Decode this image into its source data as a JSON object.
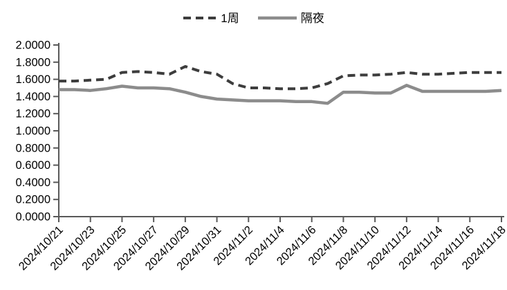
{
  "chart_data": {
    "type": "line",
    "title": "",
    "xlabel": "",
    "ylabel": "",
    "ylim": [
      0,
      2.0
    ],
    "y_tick_step": 0.2,
    "y_tick_labels": [
      "0.0000",
      "0.2000",
      "0.4000",
      "0.6000",
      "0.8000",
      "1.0000",
      "1.2000",
      "1.4000",
      "1.6000",
      "1.8000",
      "2.0000"
    ],
    "x_tick_labels": [
      "2024/10/21",
      "2024/10/23",
      "2024/10/25",
      "2024/10/27",
      "2024/10/29",
      "2024/10/31",
      "2024/11/2",
      "2024/11/4",
      "2024/11/6",
      "2024/11/8",
      "2024/11/10",
      "2024/11/12",
      "2024/11/14",
      "2024/11/16",
      "2024/11/18"
    ],
    "x_points_per_tick": 2,
    "x_step_days": 1,
    "grid": false,
    "legend_position": "top-center",
    "series": [
      {
        "name": "1周",
        "style": "dashed",
        "color": "#3d3d3d",
        "values": [
          1.58,
          1.58,
          1.59,
          1.6,
          1.68,
          1.69,
          1.68,
          1.66,
          1.75,
          1.69,
          1.66,
          1.55,
          1.5,
          1.5,
          1.49,
          1.49,
          1.5,
          1.55,
          1.64,
          1.65,
          1.65,
          1.66,
          1.68,
          1.66,
          1.66,
          1.67,
          1.68,
          1.68,
          1.68
        ]
      },
      {
        "name": "隔夜",
        "style": "solid",
        "color": "#8c8c8c",
        "values": [
          1.48,
          1.48,
          1.47,
          1.49,
          1.52,
          1.5,
          1.5,
          1.49,
          1.45,
          1.4,
          1.37,
          1.36,
          1.35,
          1.35,
          1.35,
          1.34,
          1.34,
          1.32,
          1.45,
          1.45,
          1.44,
          1.44,
          1.53,
          1.46,
          1.46,
          1.46,
          1.46,
          1.46,
          1.47
        ]
      }
    ]
  },
  "axis": {
    "line_color": "#595959",
    "label_color": "#000000"
  },
  "legend": {
    "item1_label": "1周",
    "item2_label": "隔夜"
  }
}
